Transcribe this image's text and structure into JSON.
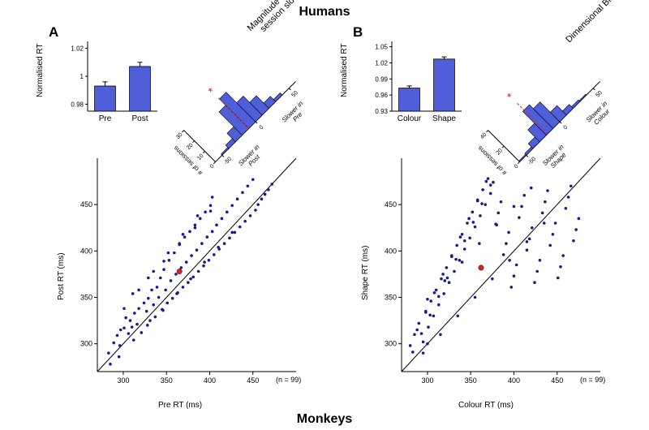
{
  "titles": {
    "top": "Humans",
    "bottom": "Monkeys"
  },
  "panelA": {
    "label": "A"
  },
  "panelB": {
    "label": "B"
  },
  "colors": {
    "bar_fill": "#4f5fd9",
    "bar_edge": "#000000",
    "scatter": "#1a1a8a",
    "mean_marker": "#e02020",
    "star": "#e02020",
    "axis": "#000000",
    "bg": "#ffffff",
    "dash": "#e02020"
  },
  "barA": {
    "categories": [
      "Pre",
      "Post"
    ],
    "values": [
      0.993,
      1.007
    ],
    "err": [
      0.003,
      0.003
    ],
    "ylabel": "Normalised RT",
    "yticks": [
      0.98,
      1.0,
      1.02
    ],
    "ylim": [
      0.975,
      1.025
    ],
    "bar_width": 0.6,
    "label_fontsize": 10
  },
  "barB": {
    "categories": [
      "Colour",
      "Shape"
    ],
    "values": [
      0.973,
      1.027
    ],
    "err": [
      0.004,
      0.004
    ],
    "ylabel": "Normalised RT",
    "yticks": [
      0.93,
      0.96,
      0.99,
      1.02,
      1.05
    ],
    "ylim": [
      0.93,
      1.06
    ],
    "bar_width": 0.6,
    "label_fontsize": 10
  },
  "histA": {
    "title": "Magnitude of\nwithin-session slowing",
    "xaxis_label": "# of sessions",
    "neg_label": "Slower in\nPost",
    "pos_label": "Slower in\nPre",
    "yticks": [
      0,
      10,
      20,
      30
    ],
    "ylim": 30,
    "bins": [
      -60,
      -50,
      -40,
      -30,
      -20,
      -10,
      0,
      10,
      20,
      30,
      40,
      50,
      60
    ],
    "counts": [
      0,
      1,
      3,
      8,
      22,
      28,
      18,
      12,
      5,
      2,
      0,
      0
    ],
    "mean_marker": -10
  },
  "histB": {
    "title": "Dimensional Bias",
    "xaxis_label": "# of sessions",
    "neg_label": "Slower in\nShape",
    "pos_label": "Slower in\nColour",
    "yticks": [
      0,
      20,
      40
    ],
    "ylim": 40,
    "bins": [
      -60,
      -50,
      -40,
      -30,
      -20,
      -10,
      0,
      10,
      20,
      30,
      40,
      50,
      60
    ],
    "counts": [
      1,
      2,
      6,
      15,
      30,
      25,
      12,
      5,
      2,
      1,
      0,
      0
    ],
    "mean_marker": -18
  },
  "scatterA": {
    "xlabel": "Pre RT (ms)",
    "ylabel": "Post RT (ms)",
    "xlim": [
      270,
      500
    ],
    "ylim": [
      270,
      500
    ],
    "ticks": [
      300,
      350,
      400,
      450
    ],
    "n_label": "(n = 99)",
    "mean": [
      365,
      378
    ],
    "points": [
      [
        283,
        290
      ],
      [
        289,
        301
      ],
      [
        293,
        309
      ],
      [
        296,
        298
      ],
      [
        301,
        317
      ],
      [
        303,
        328
      ],
      [
        306,
        311
      ],
      [
        308,
        325
      ],
      [
        310,
        318
      ],
      [
        313,
        333
      ],
      [
        316,
        321
      ],
      [
        318,
        338
      ],
      [
        321,
        312
      ],
      [
        324,
        344
      ],
      [
        327,
        335
      ],
      [
        329,
        349
      ],
      [
        331,
        325
      ],
      [
        333,
        358
      ],
      [
        335,
        342
      ],
      [
        337,
        329
      ],
      [
        339,
        361
      ],
      [
        341,
        350
      ],
      [
        343,
        371
      ],
      [
        345,
        337
      ],
      [
        347,
        380
      ],
      [
        349,
        358
      ],
      [
        351,
        344
      ],
      [
        353,
        390
      ],
      [
        355,
        368
      ],
      [
        357,
        349
      ],
      [
        359,
        398
      ],
      [
        361,
        375
      ],
      [
        363,
        355
      ],
      [
        365,
        408
      ],
      [
        367,
        382
      ],
      [
        369,
        361
      ],
      [
        371,
        415
      ],
      [
        373,
        388
      ],
      [
        375,
        366
      ],
      [
        377,
        421
      ],
      [
        379,
        395
      ],
      [
        381,
        372
      ],
      [
        383,
        428
      ],
      [
        385,
        401
      ],
      [
        387,
        378
      ],
      [
        389,
        435
      ],
      [
        391,
        408
      ],
      [
        393,
        384
      ],
      [
        395,
        442
      ],
      [
        397,
        415
      ],
      [
        399,
        390
      ],
      [
        401,
        449
      ],
      [
        403,
        421
      ],
      [
        405,
        396
      ],
      [
        408,
        428
      ],
      [
        411,
        402
      ],
      [
        414,
        435
      ],
      [
        417,
        408
      ],
      [
        420,
        442
      ],
      [
        423,
        414
      ],
      [
        426,
        449
      ],
      [
        429,
        420
      ],
      [
        432,
        456
      ],
      [
        435,
        426
      ],
      [
        438,
        463
      ],
      [
        441,
        432
      ],
      [
        444,
        470
      ],
      [
        447,
        438
      ],
      [
        450,
        477
      ],
      [
        453,
        444
      ],
      [
        456,
        450
      ],
      [
        460,
        456
      ],
      [
        464,
        461
      ],
      [
        468,
        466
      ],
      [
        472,
        472
      ],
      [
        285,
        278
      ],
      [
        295,
        286
      ],
      [
        312,
        304
      ],
      [
        328,
        320
      ],
      [
        346,
        336
      ],
      [
        362,
        354
      ],
      [
        378,
        370
      ],
      [
        394,
        388
      ],
      [
        410,
        404
      ],
      [
        426,
        420
      ],
      [
        301,
        338
      ],
      [
        318,
        358
      ],
      [
        335,
        378
      ],
      [
        352,
        398
      ],
      [
        369,
        418
      ],
      [
        386,
        438
      ],
      [
        403,
        458
      ],
      [
        311,
        354
      ],
      [
        329,
        371
      ],
      [
        347,
        389
      ],
      [
        365,
        407
      ],
      [
        383,
        425
      ],
      [
        401,
        443
      ],
      [
        297,
        315
      ]
    ]
  },
  "scatterB": {
    "xlabel": "Colour RT (ms)",
    "ylabel": "Shape RT (ms)",
    "xlim": [
      270,
      500
    ],
    "ylim": [
      270,
      500
    ],
    "ticks": [
      300,
      350,
      400,
      450
    ],
    "n_label": "(n = 99)",
    "mean": [
      362,
      382
    ],
    "points": [
      [
        280,
        298
      ],
      [
        285,
        310
      ],
      [
        290,
        322
      ],
      [
        295,
        302
      ],
      [
        298,
        334
      ],
      [
        301,
        318
      ],
      [
        304,
        346
      ],
      [
        307,
        330
      ],
      [
        310,
        358
      ],
      [
        313,
        342
      ],
      [
        316,
        370
      ],
      [
        319,
        354
      ],
      [
        322,
        382
      ],
      [
        325,
        366
      ],
      [
        328,
        394
      ],
      [
        331,
        378
      ],
      [
        334,
        406
      ],
      [
        337,
        390
      ],
      [
        340,
        418
      ],
      [
        343,
        402
      ],
      [
        346,
        430
      ],
      [
        349,
        414
      ],
      [
        352,
        442
      ],
      [
        355,
        426
      ],
      [
        358,
        454
      ],
      [
        361,
        438
      ],
      [
        364,
        466
      ],
      [
        367,
        450
      ],
      [
        370,
        478
      ],
      [
        373,
        462
      ],
      [
        376,
        474
      ],
      [
        379,
        429
      ],
      [
        382,
        441
      ],
      [
        385,
        453
      ],
      [
        388,
        396
      ],
      [
        391,
        408
      ],
      [
        394,
        420
      ],
      [
        397,
        361
      ],
      [
        400,
        373
      ],
      [
        403,
        385
      ],
      [
        406,
        436
      ],
      [
        409,
        448
      ],
      [
        412,
        460
      ],
      [
        415,
        401
      ],
      [
        418,
        413
      ],
      [
        421,
        425
      ],
      [
        424,
        366
      ],
      [
        427,
        378
      ],
      [
        430,
        390
      ],
      [
        433,
        441
      ],
      [
        436,
        453
      ],
      [
        439,
        465
      ],
      [
        442,
        406
      ],
      [
        445,
        418
      ],
      [
        448,
        430
      ],
      [
        451,
        371
      ],
      [
        454,
        383
      ],
      [
        457,
        395
      ],
      [
        460,
        446
      ],
      [
        463,
        458
      ],
      [
        466,
        470
      ],
      [
        469,
        411
      ],
      [
        472,
        423
      ],
      [
        475,
        435
      ],
      [
        283,
        291
      ],
      [
        293,
        311
      ],
      [
        303,
        331
      ],
      [
        313,
        351
      ],
      [
        323,
        371
      ],
      [
        333,
        391
      ],
      [
        343,
        411
      ],
      [
        353,
        431
      ],
      [
        363,
        451
      ],
      [
        373,
        471
      ],
      [
        288,
        315
      ],
      [
        298,
        335
      ],
      [
        308,
        355
      ],
      [
        318,
        375
      ],
      [
        328,
        395
      ],
      [
        338,
        415
      ],
      [
        348,
        435
      ],
      [
        358,
        455
      ],
      [
        368,
        475
      ],
      [
        295,
        290
      ],
      [
        315,
        310
      ],
      [
        335,
        330
      ],
      [
        355,
        350
      ],
      [
        375,
        370
      ],
      [
        395,
        390
      ],
      [
        415,
        410
      ],
      [
        435,
        430
      ],
      [
        300,
        348
      ],
      [
        320,
        368
      ],
      [
        340,
        388
      ],
      [
        360,
        408
      ],
      [
        380,
        428
      ],
      [
        400,
        448
      ],
      [
        420,
        468
      ],
      [
        300,
        300
      ]
    ]
  }
}
